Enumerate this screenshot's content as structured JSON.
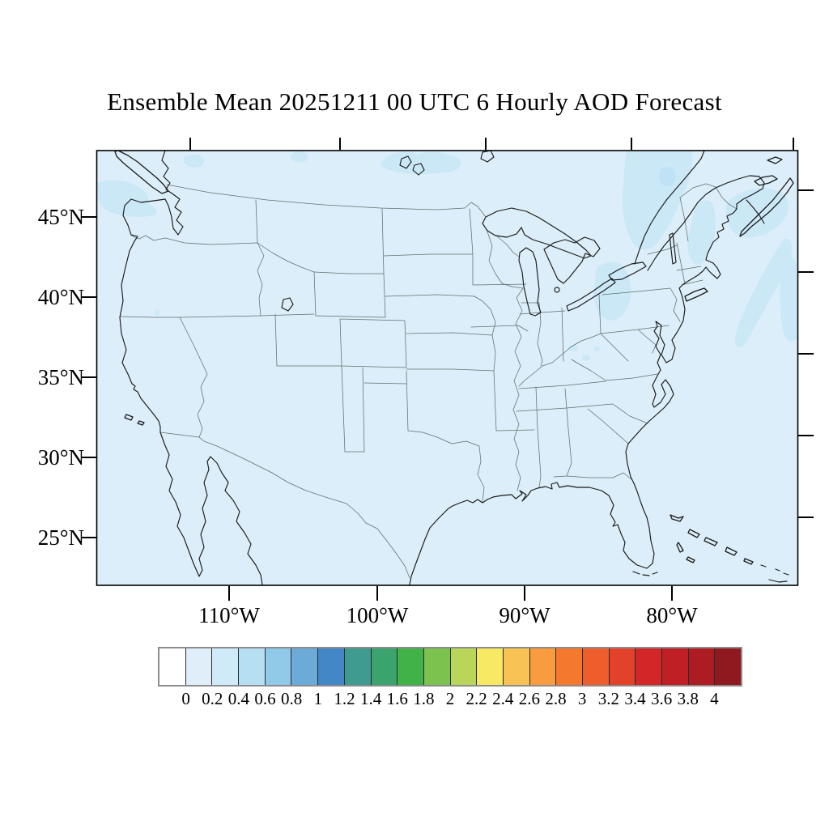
{
  "title": "Ensemble Mean 20251211 00 UTC 6 Hourly AOD Forecast",
  "axes": {
    "lat_labels": [
      "45°N",
      "40°N",
      "35°N",
      "30°N",
      "25°N"
    ],
    "lon_labels": [
      "110°W",
      "100°W",
      "90°W",
      "80°W"
    ]
  },
  "colorbar": {
    "labels": [
      "0",
      "0.2",
      "0.4",
      "0.6",
      "0.8",
      "1",
      "1.2",
      "1.4",
      "1.6",
      "1.8",
      "2",
      "2.2",
      "2.4",
      "2.6",
      "2.8",
      "3",
      "3.2",
      "3.4",
      "3.6",
      "3.8",
      "4"
    ],
    "colors": [
      "#ffffff",
      "#dfeef8",
      "#cfeaf8",
      "#b6dff4",
      "#91c9e8",
      "#6cabd8",
      "#4487c6",
      "#3f9a90",
      "#3aa36e",
      "#40b246",
      "#7cc24e",
      "#b9d65a",
      "#f8e964",
      "#f8c354",
      "#f89c3f",
      "#f5792d",
      "#ee5d2c",
      "#e2422a",
      "#d22628",
      "#c02025",
      "#ac1c22",
      "#8e191e"
    ]
  },
  "map": {
    "description": "Continental United States AOD filled contour map",
    "colors": {
      "base": "#dceef9",
      "patch": "#cbe8f7",
      "patch2": "#bfe3f5",
      "coast": "#1a1a1a",
      "state": "#5f6f6f"
    }
  }
}
